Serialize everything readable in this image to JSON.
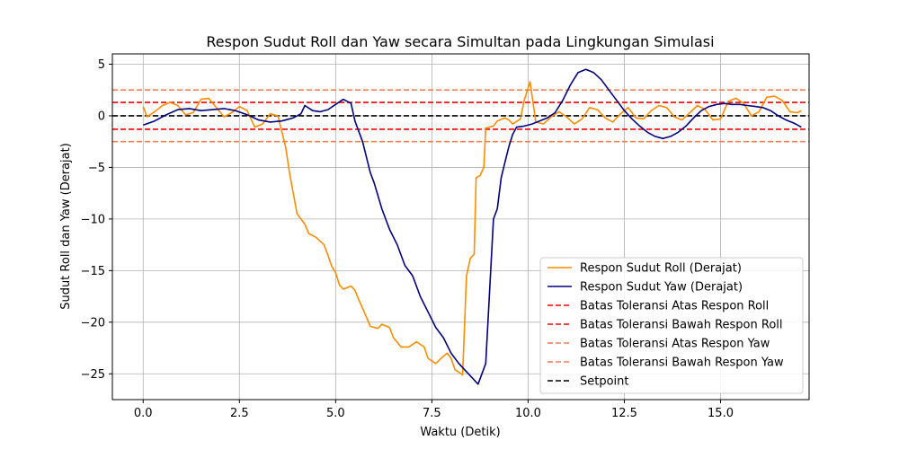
{
  "chart_data": {
    "type": "line",
    "title": "Respon Sudut Roll dan Yaw secara Simultan pada Lingkungan Simulasi",
    "xlabel": "Waktu (Detik)",
    "ylabel": "Sudut Roll dan Yaw (Derajat)",
    "xlim": [
      -0.8,
      17.3
    ],
    "ylim": [
      -27.5,
      6
    ],
    "xticks": [
      0,
      2.5,
      5,
      7.5,
      10,
      12.5,
      15
    ],
    "xtick_labels": [
      "0.0",
      "2.5",
      "5.0",
      "7.5",
      "10.0",
      "12.5",
      "15.0"
    ],
    "yticks": [
      5,
      0,
      -5,
      -10,
      -15,
      -20,
      -25
    ],
    "ytick_labels": [
      "5",
      "0",
      "−5",
      "−10",
      "−15",
      "−20",
      "−25"
    ],
    "grid": true,
    "legend_position": "lower-right",
    "series": [
      {
        "name": "Respon Sudut Roll (Derajat)",
        "color": "#ff8c00",
        "style": "solid",
        "points": [
          [
            0,
            0.9
          ],
          [
            0.1,
            -0.1
          ],
          [
            0.3,
            0.4
          ],
          [
            0.5,
            1.0
          ],
          [
            0.7,
            1.3
          ],
          [
            0.9,
            1.0
          ],
          [
            1.1,
            0.1
          ],
          [
            1.3,
            0.3
          ],
          [
            1.5,
            1.6
          ],
          [
            1.7,
            1.7
          ],
          [
            1.9,
            0.8
          ],
          [
            2.1,
            -0.1
          ],
          [
            2.3,
            0.3
          ],
          [
            2.5,
            0.9
          ],
          [
            2.7,
            0.5
          ],
          [
            2.9,
            -1.1
          ],
          [
            3.1,
            -0.8
          ],
          [
            3.3,
            0.2
          ],
          [
            3.5,
            0.0
          ],
          [
            3.6,
            -1.5
          ],
          [
            3.7,
            -3.0
          ],
          [
            3.8,
            -5.5
          ],
          [
            3.9,
            -7.5
          ],
          [
            4.0,
            -9.5
          ],
          [
            4.2,
            -10.5
          ],
          [
            4.3,
            -11.4
          ],
          [
            4.5,
            -11.8
          ],
          [
            4.7,
            -12.5
          ],
          [
            4.8,
            -13.5
          ],
          [
            4.9,
            -14.6
          ],
          [
            5.0,
            -15.2
          ],
          [
            5.1,
            -16.4
          ],
          [
            5.2,
            -16.8
          ],
          [
            5.4,
            -16.5
          ],
          [
            5.5,
            -16.9
          ],
          [
            5.6,
            -17.8
          ],
          [
            5.8,
            -19.5
          ],
          [
            5.9,
            -20.4
          ],
          [
            6.1,
            -20.6
          ],
          [
            6.2,
            -20.2
          ],
          [
            6.4,
            -20.5
          ],
          [
            6.5,
            -21.5
          ],
          [
            6.7,
            -22.4
          ],
          [
            6.9,
            -22.4
          ],
          [
            7.1,
            -21.9
          ],
          [
            7.3,
            -22.4
          ],
          [
            7.4,
            -23.5
          ],
          [
            7.6,
            -24.0
          ],
          [
            7.8,
            -23.3
          ],
          [
            7.9,
            -23.0
          ],
          [
            8.0,
            -23.5
          ],
          [
            8.1,
            -24.6
          ],
          [
            8.3,
            -25.1
          ],
          [
            8.4,
            -15.5
          ],
          [
            8.5,
            -13.8
          ],
          [
            8.6,
            -13.4
          ],
          [
            8.65,
            -6.0
          ],
          [
            8.75,
            -5.8
          ],
          [
            8.85,
            -5.0
          ],
          [
            8.9,
            -1.2
          ],
          [
            9.1,
            -1.0
          ],
          [
            9.2,
            -0.5
          ],
          [
            9.4,
            -0.2
          ],
          [
            9.5,
            -0.4
          ],
          [
            9.6,
            -0.8
          ],
          [
            9.8,
            -0.3
          ],
          [
            9.9,
            1.5
          ],
          [
            10.05,
            3.3
          ],
          [
            10.2,
            -0.6
          ],
          [
            10.4,
            -0.8
          ],
          [
            10.6,
            -0.1
          ],
          [
            10.8,
            0.4
          ],
          [
            11.0,
            -0.1
          ],
          [
            11.2,
            -0.8
          ],
          [
            11.4,
            -0.3
          ],
          [
            11.6,
            0.8
          ],
          [
            11.8,
            0.6
          ],
          [
            12.0,
            -0.2
          ],
          [
            12.2,
            -0.6
          ],
          [
            12.4,
            0.2
          ],
          [
            12.6,
            0.8
          ],
          [
            12.8,
            -0.2
          ],
          [
            13.0,
            -0.3
          ],
          [
            13.2,
            0.5
          ],
          [
            13.4,
            1.0
          ],
          [
            13.6,
            0.8
          ],
          [
            13.8,
            -0.1
          ],
          [
            14.0,
            -0.4
          ],
          [
            14.2,
            0.3
          ],
          [
            14.4,
            1.0
          ],
          [
            14.6,
            0.6
          ],
          [
            14.8,
            -0.4
          ],
          [
            15.0,
            -0.3
          ],
          [
            15.2,
            1.4
          ],
          [
            15.4,
            1.7
          ],
          [
            15.6,
            1.2
          ],
          [
            15.8,
            0.0
          ],
          [
            16.0,
            0.4
          ],
          [
            16.2,
            1.8
          ],
          [
            16.4,
            1.9
          ],
          [
            16.6,
            1.5
          ],
          [
            16.8,
            0.4
          ],
          [
            17.0,
            0.3
          ],
          [
            17.1,
            0.5
          ]
        ]
      },
      {
        "name": "Respon Sudut Yaw (Derajat)",
        "color": "#000080",
        "style": "solid",
        "points": [
          [
            0,
            -0.9
          ],
          [
            0.3,
            -0.5
          ],
          [
            0.6,
            0.1
          ],
          [
            0.9,
            0.6
          ],
          [
            1.2,
            0.7
          ],
          [
            1.5,
            0.5
          ],
          [
            1.8,
            0.6
          ],
          [
            2.1,
            0.7
          ],
          [
            2.4,
            0.5
          ],
          [
            2.7,
            0.1
          ],
          [
            3.0,
            -0.4
          ],
          [
            3.3,
            -0.6
          ],
          [
            3.6,
            -0.5
          ],
          [
            3.9,
            -0.2
          ],
          [
            4.1,
            0.2
          ],
          [
            4.2,
            1.0
          ],
          [
            4.4,
            0.5
          ],
          [
            4.6,
            0.4
          ],
          [
            4.8,
            0.6
          ],
          [
            5.0,
            1.1
          ],
          [
            5.2,
            1.6
          ],
          [
            5.4,
            1.2
          ],
          [
            5.5,
            -0.5
          ],
          [
            5.7,
            -2.5
          ],
          [
            5.9,
            -5.5
          ],
          [
            6.0,
            -6.5
          ],
          [
            6.2,
            -9.0
          ],
          [
            6.4,
            -11.0
          ],
          [
            6.6,
            -12.5
          ],
          [
            6.8,
            -14.5
          ],
          [
            7.0,
            -15.5
          ],
          [
            7.2,
            -17.5
          ],
          [
            7.4,
            -19.0
          ],
          [
            7.6,
            -20.5
          ],
          [
            7.8,
            -21.5
          ],
          [
            8.0,
            -23.0
          ],
          [
            8.2,
            -24.0
          ],
          [
            8.5,
            -25.2
          ],
          [
            8.7,
            -26.0
          ],
          [
            8.9,
            -24.0
          ],
          [
            9.0,
            -17.0
          ],
          [
            9.1,
            -10.0
          ],
          [
            9.2,
            -9.0
          ],
          [
            9.3,
            -6.0
          ],
          [
            9.4,
            -4.5
          ],
          [
            9.5,
            -3.0
          ],
          [
            9.6,
            -1.8
          ],
          [
            9.7,
            -1.1
          ],
          [
            9.9,
            -1.0
          ],
          [
            10.1,
            -0.8
          ],
          [
            10.3,
            -0.5
          ],
          [
            10.5,
            -0.2
          ],
          [
            10.7,
            0.3
          ],
          [
            10.9,
            1.5
          ],
          [
            11.1,
            3.0
          ],
          [
            11.3,
            4.2
          ],
          [
            11.5,
            4.5
          ],
          [
            11.7,
            4.2
          ],
          [
            11.9,
            3.5
          ],
          [
            12.1,
            2.5
          ],
          [
            12.3,
            1.5
          ],
          [
            12.5,
            0.5
          ],
          [
            12.7,
            -0.3
          ],
          [
            12.9,
            -1.0
          ],
          [
            13.1,
            -1.6
          ],
          [
            13.3,
            -2.0
          ],
          [
            13.5,
            -2.2
          ],
          [
            13.7,
            -2.0
          ],
          [
            13.9,
            -1.6
          ],
          [
            14.1,
            -1.0
          ],
          [
            14.3,
            -0.2
          ],
          [
            14.5,
            0.5
          ],
          [
            14.7,
            0.9
          ],
          [
            14.9,
            1.1
          ],
          [
            15.1,
            1.2
          ],
          [
            15.3,
            1.1
          ],
          [
            15.5,
            1.1
          ],
          [
            15.7,
            1.0
          ],
          [
            15.9,
            0.9
          ],
          [
            16.1,
            0.8
          ],
          [
            16.3,
            0.5
          ],
          [
            16.5,
            0.0
          ],
          [
            16.7,
            -0.4
          ],
          [
            16.9,
            -0.7
          ],
          [
            17.0,
            -0.9
          ],
          [
            17.1,
            -1.1
          ]
        ]
      }
    ],
    "hlines": [
      {
        "name": "Batas Toleransi Atas Respon Roll",
        "y": 1.3,
        "color": "#ff0000",
        "style": "dashed"
      },
      {
        "name": "Batas Toleransi Bawah Respon Roll",
        "y": -1.3,
        "color": "#ff0000",
        "style": "dashed"
      },
      {
        "name": "Batas Toleransi Atas Respon Yaw",
        "y": 2.5,
        "color": "#ff7f50",
        "style": "dashed"
      },
      {
        "name": "Batas Toleransi Bawah Respon Yaw",
        "y": -2.5,
        "color": "#ff7f50",
        "style": "dashed"
      },
      {
        "name": "Setpoint",
        "y": 0,
        "color": "#000000",
        "style": "dashed"
      }
    ],
    "legend": [
      {
        "label": "Respon Sudut Roll (Derajat)",
        "color": "#ff8c00",
        "style": "solid"
      },
      {
        "label": "Respon Sudut Yaw (Derajat)",
        "color": "#000080",
        "style": "solid"
      },
      {
        "label": "Batas Toleransi Atas Respon Roll",
        "color": "#ff0000",
        "style": "dashed"
      },
      {
        "label": "Batas Toleransi Bawah Respon Roll",
        "color": "#ff0000",
        "style": "dashed"
      },
      {
        "label": "Batas Toleransi Atas Respon Yaw",
        "color": "#ff7f50",
        "style": "dashed"
      },
      {
        "label": "Batas Toleransi Bawah Respon Yaw",
        "color": "#ff7f50",
        "style": "dashed"
      },
      {
        "label": "Setpoint",
        "color": "#000000",
        "style": "dashed"
      }
    ]
  }
}
